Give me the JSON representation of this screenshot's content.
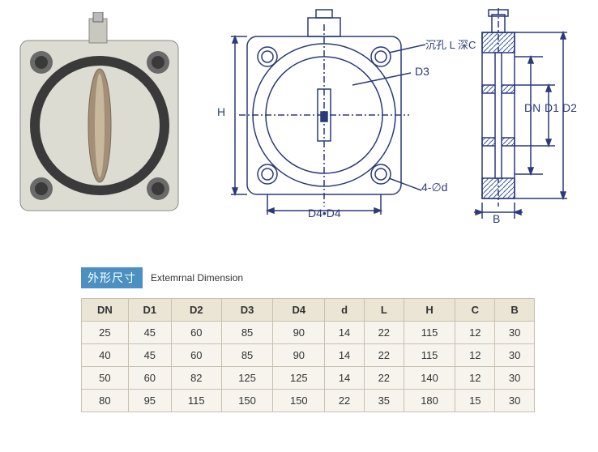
{
  "diagrams": {
    "colors": {
      "line": "#2a3a7a",
      "photo_body": "#dcdcd2",
      "photo_ring": "#3a3a3a",
      "photo_disc": "#a38f78",
      "photo_hole": "#6a6a6a",
      "hatch": "#3a5aa0"
    },
    "labels": {
      "H": "H",
      "D4D4": "D4•D4",
      "D3": "D3",
      "hole_note": "沉孔 L 深C",
      "hole_spec": "4-∅d",
      "DN": "DN",
      "D1": "D1",
      "D2": "D2",
      "B": "B"
    }
  },
  "section": {
    "title_cn": "外形尺寸",
    "title_en": "Extemrnal Dimension"
  },
  "table": {
    "columns": [
      "DN",
      "D1",
      "D2",
      "D3",
      "D4",
      "d",
      "L",
      "H",
      "C",
      "B"
    ],
    "rows": [
      [
        "25",
        "45",
        "60",
        "85",
        "90",
        "14",
        "22",
        "115",
        "12",
        "30"
      ],
      [
        "40",
        "45",
        "60",
        "85",
        "90",
        "14",
        "22",
        "115",
        "12",
        "30"
      ],
      [
        "50",
        "60",
        "82",
        "125",
        "125",
        "14",
        "22",
        "140",
        "12",
        "30"
      ],
      [
        "80",
        "95",
        "115",
        "150",
        "150",
        "22",
        "35",
        "180",
        "15",
        "30"
      ]
    ],
    "header_bg": "#ebe5d6",
    "cell_bg": "#f7f4ee",
    "border_color": "#c9c0b0"
  }
}
